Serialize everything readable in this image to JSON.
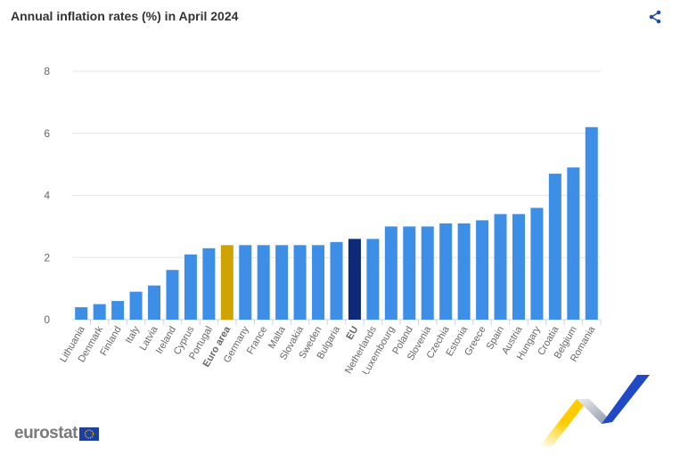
{
  "header": {
    "title": "Annual inflation rates (%) in April 2024",
    "share_icon": "share-icon"
  },
  "colors": {
    "default": "#3d8ee6",
    "euro_area": "#cfa400",
    "eu": "#0d2a78"
  },
  "chart_data": {
    "type": "bar",
    "title": "Annual inflation rates (%) in April 2024",
    "xlabel": "",
    "ylabel": "",
    "ylim": [
      0,
      8
    ],
    "yticks": [
      0,
      2,
      4,
      6,
      8
    ],
    "grid": true,
    "categories": [
      "Lithuania",
      "Denmark",
      "Finland",
      "Italy",
      "Latvia",
      "Ireland",
      "Cyprus",
      "Portugal",
      "Euro area",
      "Germany",
      "France",
      "Malta",
      "Slovakia",
      "Sweden",
      "Bulgaria",
      "EU",
      "Netherlands",
      "Luxembourg",
      "Poland",
      "Slovenia",
      "Czechia",
      "Estonia",
      "Greece",
      "Spain",
      "Austria",
      "Hungary",
      "Croatia",
      "Belgium",
      "Romania"
    ],
    "values": [
      0.4,
      0.5,
      0.6,
      0.9,
      1.1,
      1.6,
      2.1,
      2.3,
      2.4,
      2.4,
      2.4,
      2.4,
      2.4,
      2.4,
      2.5,
      2.6,
      2.6,
      3.0,
      3.0,
      3.0,
      3.1,
      3.1,
      3.2,
      3.4,
      3.4,
      3.6,
      4.7,
      4.9,
      6.2
    ],
    "highlighted": {
      "Euro area": "euro_area",
      "EU": "eu"
    }
  },
  "footer": {
    "logo_text": "eurostat"
  }
}
